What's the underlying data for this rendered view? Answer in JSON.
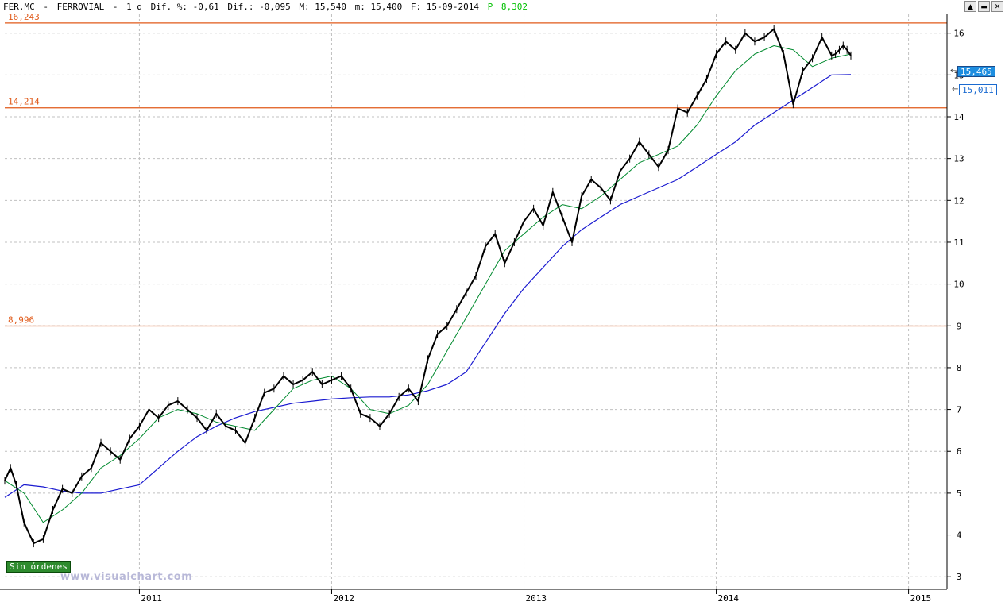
{
  "header": {
    "symbol": "FER.MC",
    "name": "FERROVIAL",
    "interval": "1 d",
    "dif_pct": "Dif. %: -0,61",
    "dif": "Dif.: -0,095",
    "max": "M: 15,540",
    "min": "m: 15,400",
    "date": "F: 15-09-2014",
    "p_label": "P",
    "p_value": "8,302"
  },
  "window_buttons": [
    "▲",
    "▬",
    "✕"
  ],
  "badges": {
    "orders": "Sin órdenes",
    "last_price": "15,465",
    "ma_value": "15,011",
    "watermark": "www.visualchart.com"
  },
  "colors": {
    "price": "#000000",
    "ma_short": "#008a2e",
    "ma_long": "#1a1ad0",
    "levels": "#e05a1a",
    "grid": "#c0c0c0"
  },
  "chart_data": {
    "type": "line",
    "title": "",
    "xlabel": "",
    "ylabel": "",
    "x_tick_labels": [
      "2011",
      "2012",
      "2013",
      "2014",
      "2015"
    ],
    "y_tick_labels": [
      "3",
      "4",
      "5",
      "6",
      "7",
      "8",
      "9",
      "10",
      "11",
      "12",
      "13",
      "14",
      "15",
      "16"
    ],
    "ylim": [
      2.7,
      16.45
    ],
    "xlim": [
      2010.3,
      2015.2
    ],
    "grid": true,
    "horizontal_levels": [
      {
        "label": "16,243",
        "value": 16.243
      },
      {
        "label": "14,214",
        "value": 14.214
      },
      {
        "label": "8,996",
        "value": 8.996
      }
    ],
    "series": [
      {
        "role": "price",
        "x": [
          2010.3,
          2010.33,
          2010.36,
          2010.4,
          2010.45,
          2010.5,
          2010.55,
          2010.6,
          2010.65,
          2010.7,
          2010.75,
          2010.8,
          2010.85,
          2010.9,
          2010.95,
          2011.0,
          2011.05,
          2011.1,
          2011.15,
          2011.2,
          2011.25,
          2011.3,
          2011.35,
          2011.4,
          2011.45,
          2011.5,
          2011.55,
          2011.6,
          2011.65,
          2011.7,
          2011.75,
          2011.8,
          2011.85,
          2011.9,
          2011.95,
          2012.0,
          2012.05,
          2012.1,
          2012.15,
          2012.2,
          2012.25,
          2012.3,
          2012.35,
          2012.4,
          2012.45,
          2012.5,
          2012.55,
          2012.6,
          2012.65,
          2012.7,
          2012.75,
          2012.8,
          2012.85,
          2012.9,
          2012.95,
          2013.0,
          2013.05,
          2013.1,
          2013.15,
          2013.2,
          2013.25,
          2013.3,
          2013.35,
          2013.4,
          2013.45,
          2013.5,
          2013.55,
          2013.6,
          2013.65,
          2013.7,
          2013.75,
          2013.8,
          2013.85,
          2013.9,
          2013.95,
          2014.0,
          2014.05,
          2014.1,
          2014.15,
          2014.2,
          2014.25,
          2014.3,
          2014.35,
          2014.4,
          2014.45,
          2014.5,
          2014.55,
          2014.6,
          2014.62,
          2014.64,
          2014.66,
          2014.68,
          2014.7
        ],
        "values": [
          5.3,
          5.6,
          5.2,
          4.3,
          3.8,
          3.9,
          4.6,
          5.1,
          5.0,
          5.4,
          5.6,
          6.2,
          6.0,
          5.8,
          6.3,
          6.6,
          7.0,
          6.8,
          7.1,
          7.2,
          7.0,
          6.8,
          6.5,
          6.9,
          6.6,
          6.5,
          6.2,
          6.8,
          7.4,
          7.5,
          7.8,
          7.6,
          7.7,
          7.9,
          7.6,
          7.7,
          7.8,
          7.5,
          6.9,
          6.8,
          6.6,
          6.9,
          7.3,
          7.5,
          7.2,
          8.2,
          8.8,
          9.0,
          9.4,
          9.8,
          10.2,
          10.9,
          11.2,
          10.5,
          11.0,
          11.5,
          11.8,
          11.4,
          12.2,
          11.6,
          11.0,
          12.1,
          12.5,
          12.3,
          12.0,
          12.7,
          13.0,
          13.4,
          13.1,
          12.8,
          13.2,
          14.2,
          14.1,
          14.5,
          14.9,
          15.5,
          15.8,
          15.6,
          16.0,
          15.8,
          15.9,
          16.1,
          15.5,
          14.3,
          15.1,
          15.4,
          15.9,
          15.465,
          15.5,
          15.6,
          15.7,
          15.6,
          15.465
        ]
      },
      {
        "role": "ma_short",
        "x": [
          2010.3,
          2010.4,
          2010.5,
          2010.6,
          2010.7,
          2010.8,
          2010.9,
          2011.0,
          2011.1,
          2011.2,
          2011.3,
          2011.4,
          2011.5,
          2011.6,
          2011.7,
          2011.8,
          2011.9,
          2012.0,
          2012.1,
          2012.2,
          2012.3,
          2012.4,
          2012.5,
          2012.6,
          2012.7,
          2012.8,
          2012.9,
          2013.0,
          2013.1,
          2013.2,
          2013.3,
          2013.4,
          2013.5,
          2013.6,
          2013.7,
          2013.8,
          2013.9,
          2014.0,
          2014.1,
          2014.2,
          2014.3,
          2014.4,
          2014.5,
          2014.6,
          2014.7
        ],
        "values": [
          5.3,
          5.0,
          4.3,
          4.6,
          5.0,
          5.6,
          5.9,
          6.3,
          6.8,
          7.0,
          6.9,
          6.7,
          6.6,
          6.5,
          7.0,
          7.5,
          7.7,
          7.8,
          7.5,
          7.0,
          6.9,
          7.1,
          7.6,
          8.4,
          9.2,
          10.0,
          10.8,
          11.2,
          11.6,
          11.9,
          11.8,
          12.1,
          12.5,
          12.9,
          13.1,
          13.3,
          13.8,
          14.5,
          15.1,
          15.5,
          15.7,
          15.6,
          15.2,
          15.4,
          15.5
        ]
      },
      {
        "role": "ma_long",
        "x": [
          2010.3,
          2010.4,
          2010.5,
          2010.6,
          2010.7,
          2010.8,
          2010.9,
          2011.0,
          2011.1,
          2011.2,
          2011.3,
          2011.4,
          2011.5,
          2011.6,
          2011.7,
          2011.8,
          2011.9,
          2012.0,
          2012.1,
          2012.2,
          2012.3,
          2012.4,
          2012.5,
          2012.6,
          2012.7,
          2012.8,
          2012.9,
          2013.0,
          2013.1,
          2013.2,
          2013.3,
          2013.4,
          2013.5,
          2013.6,
          2013.7,
          2013.8,
          2013.9,
          2014.0,
          2014.1,
          2014.2,
          2014.3,
          2014.4,
          2014.5,
          2014.6,
          2014.7
        ],
        "values": [
          4.9,
          5.2,
          5.15,
          5.05,
          5.0,
          5.0,
          5.1,
          5.2,
          5.6,
          6.0,
          6.35,
          6.6,
          6.8,
          6.95,
          7.05,
          7.15,
          7.2,
          7.25,
          7.28,
          7.3,
          7.3,
          7.35,
          7.45,
          7.6,
          7.9,
          8.6,
          9.3,
          9.9,
          10.4,
          10.9,
          11.3,
          11.6,
          11.9,
          12.1,
          12.3,
          12.5,
          12.8,
          13.1,
          13.4,
          13.8,
          14.1,
          14.4,
          14.7,
          15.0,
          15.011
        ]
      }
    ]
  }
}
